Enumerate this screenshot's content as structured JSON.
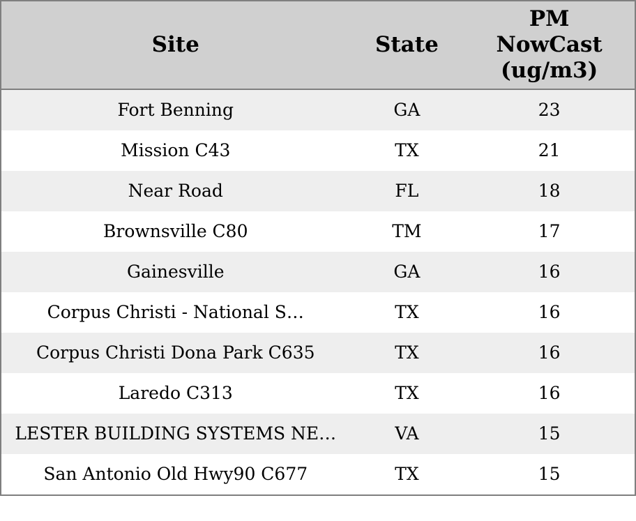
{
  "colors": {
    "header_bg": "#d0d0d0",
    "row_stripe_bg": "#eeeeee",
    "row_bg": "#ffffff",
    "border": "#7f7f7f",
    "text": "#000000"
  },
  "table": {
    "columns": [
      {
        "id": "site",
        "label": "Site"
      },
      {
        "id": "state",
        "label": "State"
      },
      {
        "id": "pm",
        "label": "PM NowCast (ug/m3)"
      }
    ],
    "rows": [
      {
        "site": "Fort Benning",
        "state": "GA",
        "pm_nowcast": "23"
      },
      {
        "site": "Mission C43",
        "state": "TX",
        "pm_nowcast": "21"
      },
      {
        "site": "Near Road",
        "state": "FL",
        "pm_nowcast": "18"
      },
      {
        "site": "Brownsville C80",
        "state": "TM",
        "pm_nowcast": "17"
      },
      {
        "site": "Gainesville",
        "state": "GA",
        "pm_nowcast": "16"
      },
      {
        "site": "Corpus Christi - National S…",
        "state": "TX",
        "pm_nowcast": "16"
      },
      {
        "site": "Corpus Christi Dona Park C635",
        "state": "TX",
        "pm_nowcast": "16"
      },
      {
        "site": "Laredo C313",
        "state": "TX",
        "pm_nowcast": "16"
      },
      {
        "site": "LESTER BUILDING SYSTEMS NE…",
        "state": "VA",
        "pm_nowcast": "15"
      },
      {
        "site": "San Antonio Old Hwy90 C677",
        "state": "TX",
        "pm_nowcast": "15"
      }
    ]
  }
}
